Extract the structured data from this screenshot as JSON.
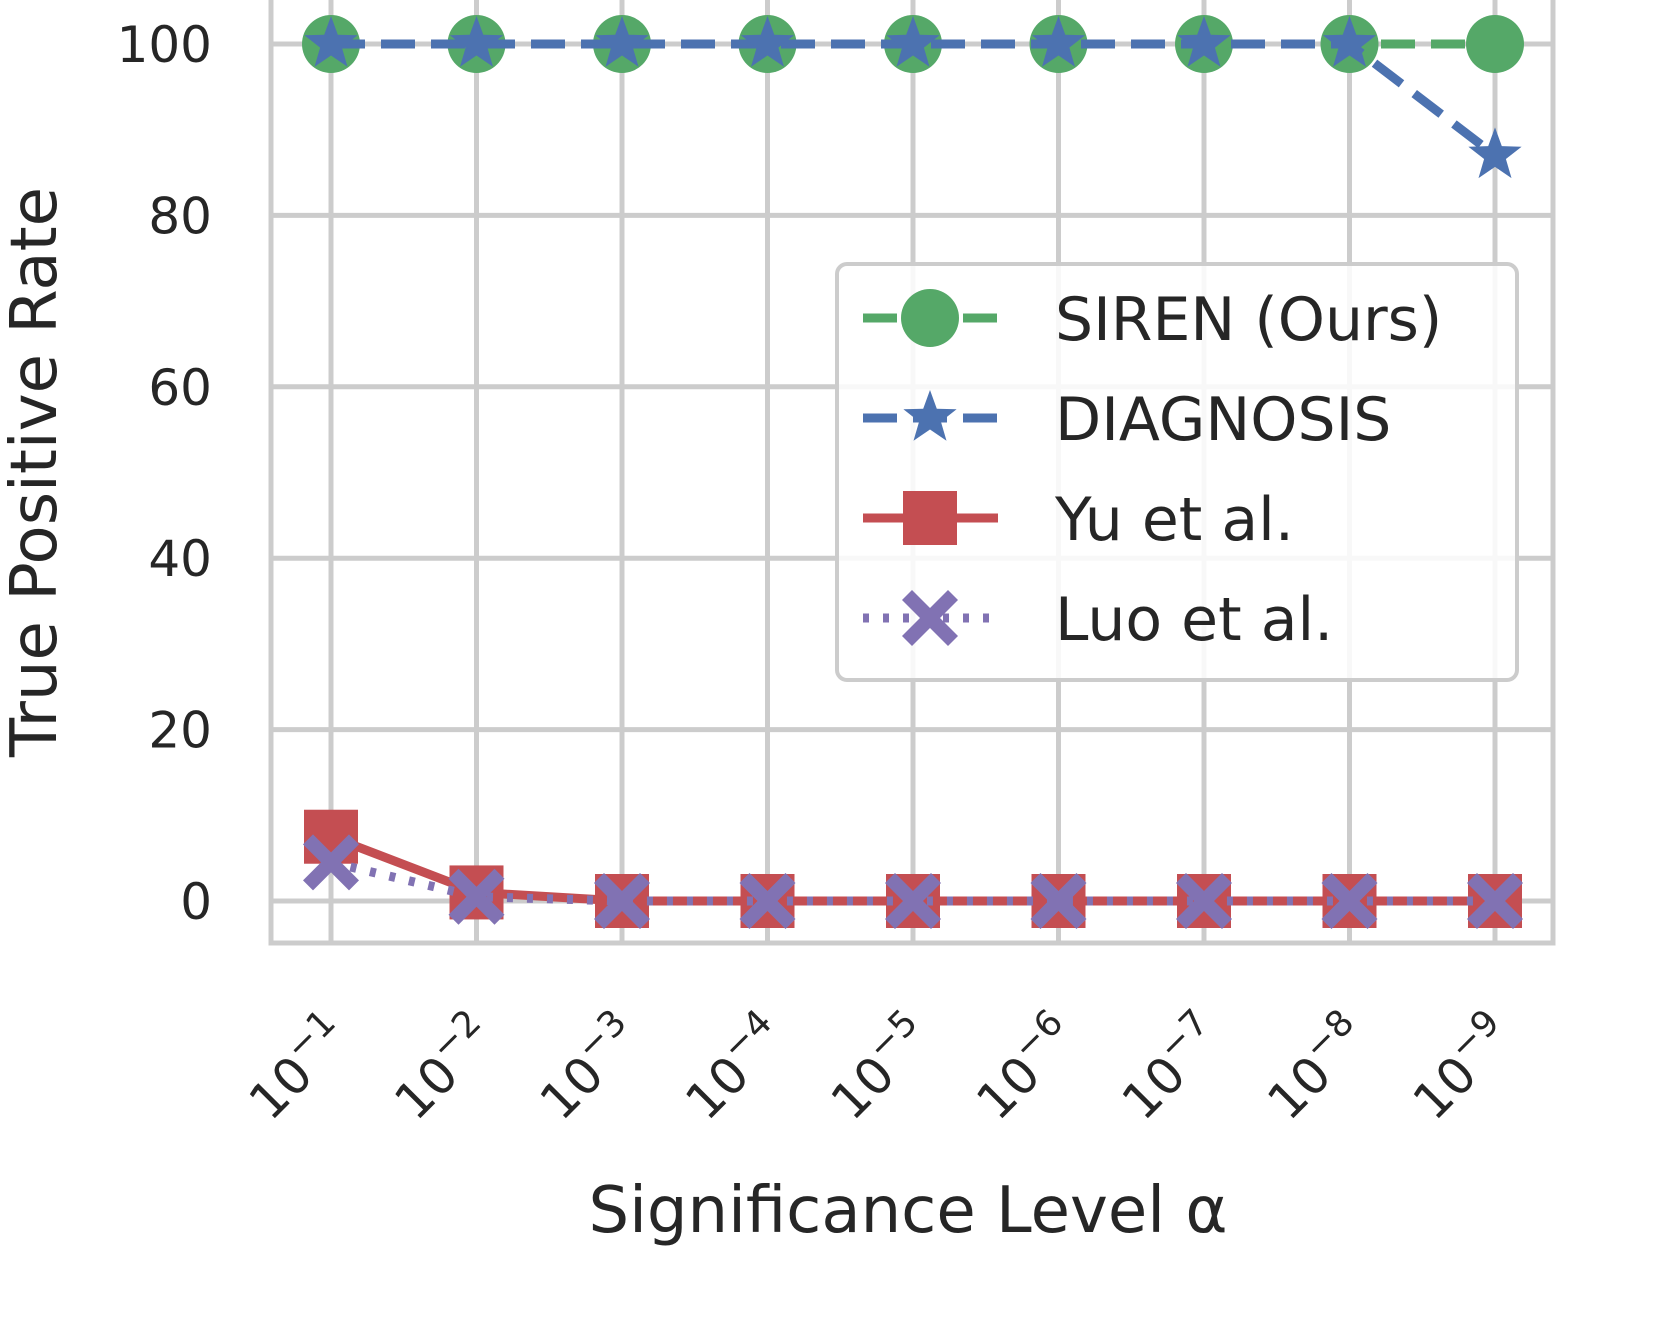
{
  "chart_data": {
    "type": "line",
    "title": "",
    "xlabel": "Significance Level α",
    "ylabel": "True Positive Rate",
    "categories": [
      "10⁻¹",
      "10⁻²",
      "10⁻³",
      "10⁻⁴",
      "10⁻⁵",
      "10⁻⁶",
      "10⁻⁷",
      "10⁻⁸",
      "10⁻⁹"
    ],
    "xtick_labels": [
      {
        "base": "10",
        "exp": "−1"
      },
      {
        "base": "10",
        "exp": "−2"
      },
      {
        "base": "10",
        "exp": "−3"
      },
      {
        "base": "10",
        "exp": "−4"
      },
      {
        "base": "10",
        "exp": "−5"
      },
      {
        "base": "10",
        "exp": "−6"
      },
      {
        "base": "10",
        "exp": "−7"
      },
      {
        "base": "10",
        "exp": "−8"
      },
      {
        "base": "10",
        "exp": "−9"
      }
    ],
    "yticks": [
      0,
      20,
      40,
      60,
      80,
      100
    ],
    "ylim": [
      -5,
      105
    ],
    "grid": true,
    "legend_position": "center-right",
    "series": [
      {
        "name": "SIREN (Ours)",
        "values": [
          100,
          100,
          100,
          100,
          100,
          100,
          100,
          100,
          100
        ],
        "color": "#55a868",
        "marker": "circle",
        "linestyle": "dashed"
      },
      {
        "name": "DIAGNOSIS",
        "values": [
          100,
          100,
          100,
          100,
          100,
          100,
          100,
          100,
          87
        ],
        "color": "#4c72b0",
        "marker": "star",
        "linestyle": "dashed"
      },
      {
        "name": "Yu et al.",
        "values": [
          7.5,
          1,
          0,
          0,
          0,
          0,
          0,
          0,
          0
        ],
        "color": "#c44e52",
        "marker": "square",
        "linestyle": "solid"
      },
      {
        "name": "Luo et al.",
        "values": [
          4.5,
          0.5,
          0,
          0,
          0,
          0,
          0,
          0,
          0
        ],
        "color": "#8172b3",
        "marker": "x",
        "linestyle": "dotted"
      }
    ]
  }
}
